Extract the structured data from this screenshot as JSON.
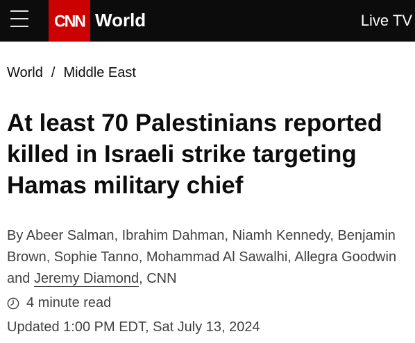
{
  "header": {
    "menu_icon": "hamburger-menu-icon",
    "logo_text": "CNN",
    "section": "World",
    "live_tv": "Live TV",
    "logo_color": "#cc0000",
    "bar_color": "#0c0c0c"
  },
  "breadcrumb": {
    "items": [
      "World",
      "Middle East"
    ],
    "separator": "/"
  },
  "article": {
    "headline": "At least 70 Palestinians reported killed in Israeli strike targeting Hamas military chief",
    "byline_prefix": "By Abeer Salman, Ibrahim Dahman, Niamh Kennedy, Benjamin Brown, Sophie Tanno, Mohammad Al Sawalhi, Allegra Goodwin and ",
    "byline_link": "Jeremy Diamond",
    "byline_suffix": ", CNN",
    "read_time": "4 minute read",
    "read_time_icon": "clock-icon",
    "updated": "Updated 1:00 PM EDT, Sat July 13, 2024"
  }
}
